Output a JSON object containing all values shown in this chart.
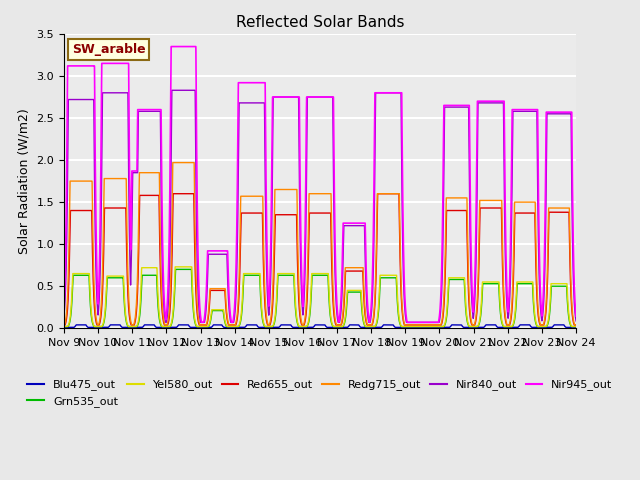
{
  "title": "Reflected Solar Bands",
  "ylabel": "Solar Radiation (W/m2)",
  "annotation_text": "SW_arable",
  "annotation_color": "#8B0000",
  "annotation_bg": "#FFFFE0",
  "annotation_border": "#8B6914",
  "ylim": [
    0.0,
    3.5
  ],
  "yticks": [
    0.0,
    0.5,
    1.0,
    1.5,
    2.0,
    2.5,
    3.0,
    3.5
  ],
  "xtick_labels": [
    "Nov 9",
    "Nov 10",
    "Nov 11",
    "Nov 12",
    "Nov 13",
    "Nov 14",
    "Nov 15",
    "Nov 16",
    "Nov 17",
    "Nov 18",
    "Nov 19",
    "Nov 20",
    "Nov 21",
    "Nov 22",
    "Nov 23",
    "Nov 24"
  ],
  "series": {
    "Blu475_out": {
      "color": "#0000BB",
      "lw": 1.0
    },
    "Grn535_out": {
      "color": "#00BB00",
      "lw": 1.0
    },
    "Yel580_out": {
      "color": "#DDDD00",
      "lw": 1.0
    },
    "Red655_out": {
      "color": "#DD0000",
      "lw": 1.0
    },
    "Redg715_out": {
      "color": "#FF8800",
      "lw": 1.0
    },
    "Nir840_out": {
      "color": "#9900CC",
      "lw": 1.0
    },
    "Nir945_out": {
      "color": "#FF00FF",
      "lw": 1.2
    }
  },
  "bg_color": "#E8E8E8",
  "plot_bg": "#EBEBEB",
  "grid_color": "white",
  "n_days": 15,
  "day_peaks_nir945": [
    3.12,
    3.15,
    2.6,
    3.35,
    0.92,
    2.92,
    2.75,
    2.75,
    1.25,
    2.8,
    0.0,
    2.65,
    2.7,
    2.6,
    2.57
  ],
  "day_peaks_nir840": [
    2.72,
    2.8,
    2.58,
    2.83,
    0.88,
    2.68,
    2.75,
    2.75,
    1.22,
    2.8,
    0.0,
    2.63,
    2.68,
    2.58,
    2.55
  ],
  "day_peaks_redg715": [
    1.75,
    1.78,
    1.85,
    1.97,
    0.47,
    1.57,
    1.65,
    1.6,
    0.72,
    1.6,
    0.0,
    1.55,
    1.52,
    1.5,
    1.43
  ],
  "day_peaks_red655": [
    1.4,
    1.43,
    1.58,
    1.6,
    0.45,
    1.37,
    1.35,
    1.37,
    0.68,
    1.6,
    0.0,
    1.4,
    1.43,
    1.37,
    1.38
  ],
  "day_peaks_yel580": [
    0.65,
    0.62,
    0.72,
    0.73,
    0.22,
    0.65,
    0.65,
    0.65,
    0.45,
    0.63,
    0.0,
    0.6,
    0.55,
    0.55,
    0.53
  ],
  "day_peaks_grn535": [
    0.63,
    0.6,
    0.63,
    0.7,
    0.21,
    0.63,
    0.63,
    0.63,
    0.43,
    0.6,
    0.0,
    0.58,
    0.53,
    0.53,
    0.5
  ],
  "day_peaks_blu475": [
    0.04,
    0.04,
    0.04,
    0.04,
    0.04,
    0.04,
    0.04,
    0.04,
    0.04,
    0.04,
    0.0,
    0.04,
    0.04,
    0.04,
    0.04
  ],
  "day_widths_nir945": [
    0.35,
    0.35,
    0.3,
    0.32,
    0.25,
    0.35,
    0.35,
    0.35,
    0.28,
    0.35,
    0.0,
    0.33,
    0.35,
    0.33,
    0.33
  ],
  "day_widths_nir840": [
    0.33,
    0.33,
    0.28,
    0.3,
    0.23,
    0.33,
    0.33,
    0.33,
    0.26,
    0.33,
    0.0,
    0.31,
    0.33,
    0.31,
    0.31
  ],
  "day_widths_redg715": [
    0.28,
    0.28,
    0.25,
    0.27,
    0.18,
    0.28,
    0.28,
    0.28,
    0.22,
    0.28,
    0.0,
    0.26,
    0.28,
    0.26,
    0.26
  ],
  "day_widths_red655": [
    0.27,
    0.27,
    0.24,
    0.26,
    0.17,
    0.27,
    0.27,
    0.27,
    0.21,
    0.27,
    0.0,
    0.25,
    0.27,
    0.25,
    0.25
  ],
  "day_widths_yel580": [
    0.2,
    0.2,
    0.18,
    0.2,
    0.13,
    0.2,
    0.2,
    0.2,
    0.16,
    0.2,
    0.0,
    0.19,
    0.2,
    0.19,
    0.19
  ],
  "day_widths_grn535": [
    0.19,
    0.19,
    0.17,
    0.19,
    0.12,
    0.19,
    0.19,
    0.19,
    0.15,
    0.19,
    0.0,
    0.18,
    0.19,
    0.18,
    0.18
  ],
  "day_widths_blu475": [
    0.1,
    0.1,
    0.1,
    0.1,
    0.08,
    0.1,
    0.1,
    0.1,
    0.09,
    0.1,
    0.0,
    0.1,
    0.1,
    0.1,
    0.1
  ],
  "nir945_bump_vals": [
    0.0,
    0.0,
    1.87,
    0.0,
    0.0,
    0.0,
    0.0,
    0.0,
    0.0,
    0.0,
    0.0,
    0.0,
    0.0,
    0.0,
    0.0
  ],
  "nir840_bump_vals": [
    0.0,
    0.0,
    1.85,
    0.0,
    0.0,
    0.0,
    0.0,
    0.0,
    0.0,
    0.0,
    0.0,
    0.0,
    0.0,
    0.0,
    0.0
  ],
  "baseline_nir945": 0.07,
  "baseline_nir840": 0.07,
  "baseline_redg715": 0.04,
  "baseline_red655": 0.04,
  "baseline_yel580": 0.02,
  "baseline_grn535": 0.02,
  "baseline_blu475": 0.01
}
